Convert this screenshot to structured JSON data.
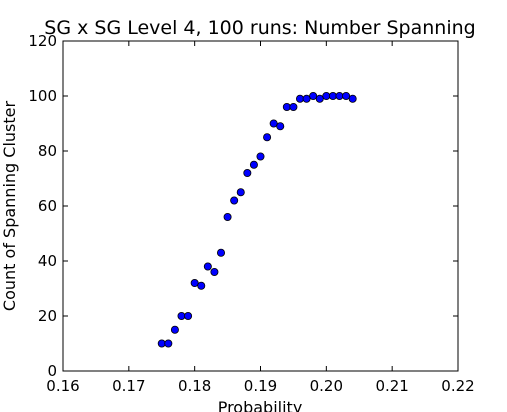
{
  "chart_data": {
    "type": "scatter",
    "title": "SG x SG Level 4, 100 runs: Number Spanning",
    "xlabel": "Probability",
    "ylabel": "Count of Spanning Cluster",
    "xlim": [
      0.16,
      0.22
    ],
    "ylim": [
      0,
      120
    ],
    "xticks": [
      "0.16",
      "0.17",
      "0.18",
      "0.19",
      "0.20",
      "0.21",
      "0.22"
    ],
    "yticks": [
      "0",
      "20",
      "40",
      "60",
      "80",
      "100",
      "120"
    ],
    "grid": false,
    "marker_color": "#0000ff",
    "series": [
      {
        "x": [
          0.175,
          0.176,
          0.177,
          0.178,
          0.179,
          0.18,
          0.181,
          0.182,
          0.183,
          0.184,
          0.185,
          0.186,
          0.187,
          0.188,
          0.189,
          0.19,
          0.191,
          0.192,
          0.193,
          0.194,
          0.195,
          0.196,
          0.197,
          0.198,
          0.199,
          0.2,
          0.201,
          0.202,
          0.203,
          0.204
        ],
        "y": [
          10,
          10,
          15,
          20,
          20,
          32,
          31,
          38,
          36,
          43,
          56,
          62,
          65,
          72,
          75,
          78,
          85,
          90,
          89,
          96,
          96,
          99,
          99,
          100,
          99,
          100,
          100,
          100,
          100,
          99
        ]
      }
    ]
  }
}
